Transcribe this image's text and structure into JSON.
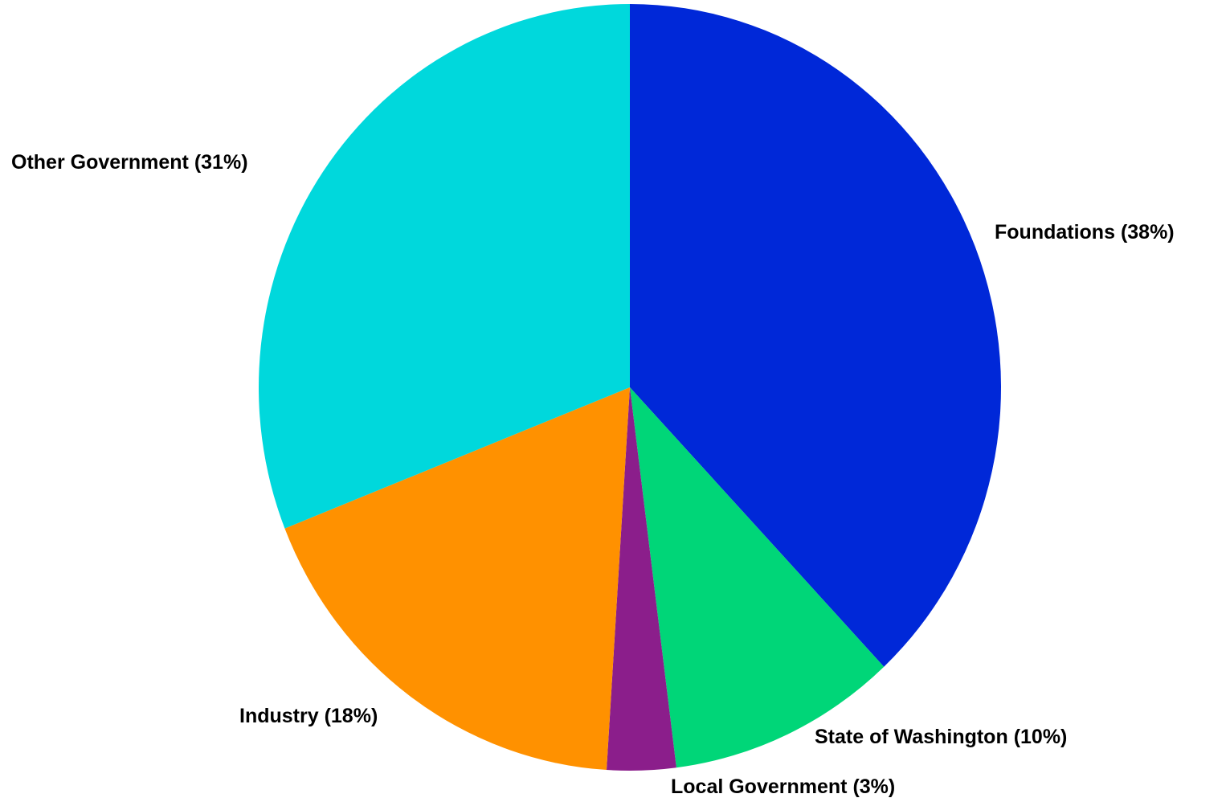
{
  "chart_data": {
    "type": "pie",
    "categories": [
      "Foundations",
      "State of Washington",
      "Local Government",
      "Industry",
      "Other Government"
    ],
    "values": [
      38,
      10,
      3,
      18,
      31
    ],
    "value_labels": [
      "(38%)",
      "(10%)",
      "(3%)",
      "(18%)",
      "(31%)"
    ],
    "colors": [
      "#0028d8",
      "#00d678",
      "#8b1e8b",
      "#ff9100",
      "#00d8dc"
    ]
  }
}
